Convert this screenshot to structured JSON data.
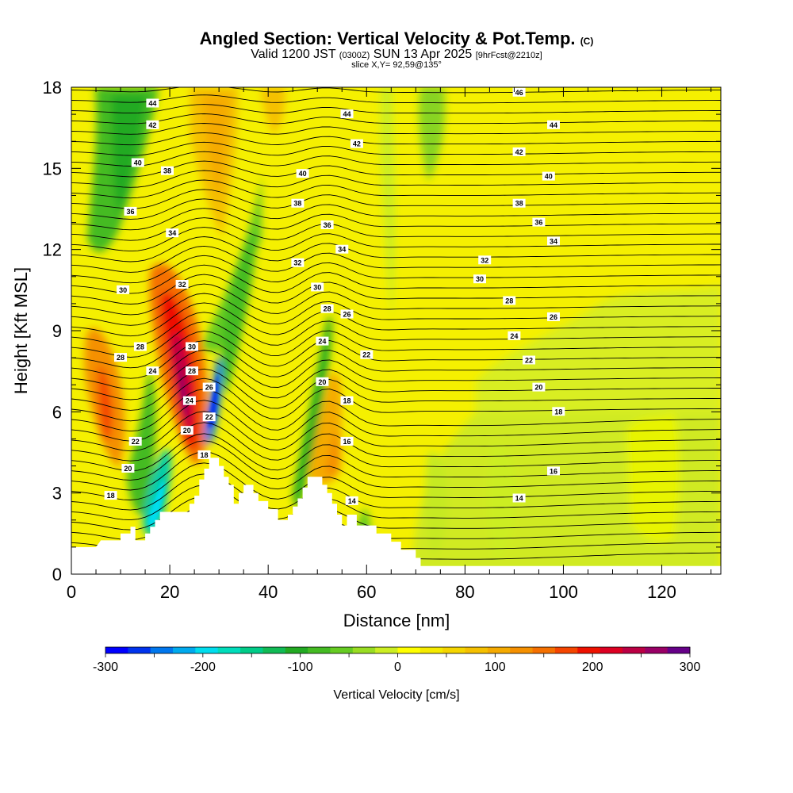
{
  "title": {
    "main": "Angled Section: Vertical Velocity & Pot.Temp.",
    "copyright": "(C)",
    "valid_prefix": "Valid 1200 JST",
    "valid_utc": "(0300Z)",
    "valid_date": "SUN 13 Apr 2025",
    "forecast": "[9hrFcst@2210z]",
    "slice": "slice X,Y= 92,59@135°"
  },
  "chart_data": {
    "type": "contour-section",
    "title": "Angled Section: Vertical Velocity & Pot.Temp.",
    "xlabel": "Distance [nm]",
    "ylabel": "Height [Kft MSL]",
    "xlim": [
      0,
      132
    ],
    "ylim": [
      0,
      18
    ],
    "x_ticks": [
      "0",
      "20",
      "40",
      "60",
      "80",
      "100",
      "120"
    ],
    "x_tick_values": [
      0,
      20,
      40,
      60,
      80,
      100,
      120
    ],
    "y_ticks": [
      "0",
      "3",
      "6",
      "9",
      "12",
      "15",
      "18"
    ],
    "y_tick_values": [
      0,
      3,
      6,
      9,
      12,
      15,
      18
    ],
    "terrain": [
      [
        0,
        1
      ],
      [
        5,
        1
      ],
      [
        5,
        1
      ],
      [
        6,
        1.25
      ],
      [
        10,
        1.25
      ],
      [
        10,
        1.5
      ],
      [
        12,
        1.5
      ],
      [
        12,
        1.75
      ],
      [
        13,
        1.75
      ],
      [
        13,
        1.25
      ],
      [
        15,
        1.25
      ],
      [
        15,
        1.5
      ],
      [
        16,
        1.5
      ],
      [
        16,
        1.75
      ],
      [
        17,
        1.75
      ],
      [
        17,
        2
      ],
      [
        18,
        2
      ],
      [
        18,
        2.3
      ],
      [
        24,
        2.3
      ],
      [
        24,
        2.6
      ],
      [
        25,
        2.6
      ],
      [
        25,
        2.9
      ],
      [
        26,
        2.9
      ],
      [
        26,
        3.5
      ],
      [
        27,
        3.5
      ],
      [
        27,
        3.9
      ],
      [
        28,
        3.9
      ],
      [
        28,
        4.3
      ],
      [
        30,
        4.3
      ],
      [
        30,
        4
      ],
      [
        31,
        4
      ],
      [
        31,
        3.6
      ],
      [
        32,
        3.6
      ],
      [
        32,
        3.3
      ],
      [
        33,
        3.3
      ],
      [
        33,
        2.6
      ],
      [
        34,
        2.6
      ],
      [
        34,
        3
      ],
      [
        35,
        3
      ],
      [
        35,
        3.3
      ],
      [
        37,
        3.3
      ],
      [
        37,
        3
      ],
      [
        38,
        3
      ],
      [
        38,
        2.7
      ],
      [
        40,
        2.7
      ],
      [
        40,
        2.4
      ],
      [
        42,
        2.4
      ],
      [
        42,
        2
      ],
      [
        44,
        2
      ],
      [
        44,
        2.2
      ],
      [
        45,
        2.2
      ],
      [
        45,
        2.5
      ],
      [
        46,
        2.5
      ],
      [
        46,
        2.8
      ],
      [
        47,
        2.8
      ],
      [
        47,
        3.2
      ],
      [
        48,
        3.2
      ],
      [
        48,
        3.6
      ],
      [
        51,
        3.6
      ],
      [
        51,
        3.3
      ],
      [
        52,
        3.3
      ],
      [
        52,
        3
      ],
      [
        53,
        3
      ],
      [
        53,
        2.6
      ],
      [
        54,
        2.6
      ],
      [
        54,
        2.2
      ],
      [
        55,
        2.2
      ],
      [
        55,
        1.8
      ],
      [
        56,
        1.8
      ],
      [
        56,
        2.2
      ],
      [
        58,
        2.2
      ],
      [
        58,
        1.8
      ],
      [
        62,
        1.8
      ],
      [
        62,
        1.5
      ],
      [
        65,
        1.5
      ],
      [
        65,
        1.2
      ],
      [
        67,
        1.2
      ],
      [
        67,
        0.9
      ],
      [
        70,
        0.9
      ],
      [
        70,
        0.6
      ],
      [
        71,
        0.6
      ],
      [
        71,
        0.3
      ],
      [
        132,
        0.3
      ],
      [
        132,
        0
      ]
    ],
    "colorbar": {
      "label": "Vertical Velocity [cm/s]",
      "min": -300,
      "max": 300,
      "step": 25,
      "tick_labels": [
        "-300",
        "-200",
        "-100",
        "0",
        "100",
        "200",
        "300"
      ],
      "tick_values": [
        -300,
        -200,
        -100,
        0,
        100,
        200,
        300
      ],
      "colors": [
        "#0000ff",
        "#0033ee",
        "#0077ee",
        "#00aaee",
        "#00ddee",
        "#00ddbb",
        "#00cc88",
        "#11bb55",
        "#22aa22",
        "#44bb22",
        "#66cc22",
        "#99dd22",
        "#ccee22",
        "#ffff00",
        "#f5ea00",
        "#f5d500",
        "#f5c000",
        "#f5aa00",
        "#f59000",
        "#f57000",
        "#f54500",
        "#ee1100",
        "#dd0022",
        "#bb0044",
        "#990066",
        "#660088"
      ]
    },
    "theta_isentropes_C": [
      "14",
      "16",
      "18",
      "20",
      "22",
      "24",
      "26",
      "28",
      "30",
      "32",
      "34",
      "36",
      "38",
      "40",
      "42",
      "44",
      "46"
    ],
    "contour_labels": [
      {
        "text": "46",
        "x": 91,
        "y": 17.8
      },
      {
        "text": "44",
        "x": 56,
        "y": 17.0
      },
      {
        "text": "44",
        "x": 98,
        "y": 16.6
      },
      {
        "text": "44",
        "x": 16.5,
        "y": 17.4
      },
      {
        "text": "42",
        "x": 16.5,
        "y": 16.6
      },
      {
        "text": "42",
        "x": 58,
        "y": 15.9
      },
      {
        "text": "42",
        "x": 91,
        "y": 15.6
      },
      {
        "text": "40",
        "x": 13.5,
        "y": 15.2
      },
      {
        "text": "38",
        "x": 19.5,
        "y": 14.9
      },
      {
        "text": "40",
        "x": 47,
        "y": 14.8
      },
      {
        "text": "40",
        "x": 97,
        "y": 14.7
      },
      {
        "text": "38",
        "x": 46,
        "y": 13.7
      },
      {
        "text": "38",
        "x": 91,
        "y": 13.7
      },
      {
        "text": "36",
        "x": 12,
        "y": 13.4
      },
      {
        "text": "36",
        "x": 95,
        "y": 13.0
      },
      {
        "text": "36",
        "x": 52,
        "y": 12.9
      },
      {
        "text": "34",
        "x": 20.5,
        "y": 12.6
      },
      {
        "text": "34",
        "x": 98,
        "y": 12.3
      },
      {
        "text": "34",
        "x": 55,
        "y": 12.0
      },
      {
        "text": "32",
        "x": 84,
        "y": 11.6
      },
      {
        "text": "32",
        "x": 46,
        "y": 11.5
      },
      {
        "text": "32",
        "x": 22.5,
        "y": 10.7
      },
      {
        "text": "30",
        "x": 83,
        "y": 10.9
      },
      {
        "text": "30",
        "x": 50,
        "y": 10.6
      },
      {
        "text": "30",
        "x": 10.5,
        "y": 10.5
      },
      {
        "text": "28",
        "x": 89,
        "y": 10.1
      },
      {
        "text": "28",
        "x": 52,
        "y": 9.8
      },
      {
        "text": "26",
        "x": 56,
        "y": 9.6
      },
      {
        "text": "26",
        "x": 98,
        "y": 9.5
      },
      {
        "text": "24",
        "x": 90,
        "y": 8.8
      },
      {
        "text": "24",
        "x": 51,
        "y": 8.6
      },
      {
        "text": "22",
        "x": 60,
        "y": 8.1
      },
      {
        "text": "22",
        "x": 93,
        "y": 7.9
      },
      {
        "text": "30",
        "x": 24.5,
        "y": 8.4
      },
      {
        "text": "28",
        "x": 14,
        "y": 8.4
      },
      {
        "text": "28",
        "x": 10,
        "y": 8.0
      },
      {
        "text": "28",
        "x": 24.5,
        "y": 7.5
      },
      {
        "text": "24",
        "x": 16.5,
        "y": 7.5
      },
      {
        "text": "20",
        "x": 51,
        "y": 7.1
      },
      {
        "text": "20",
        "x": 95,
        "y": 6.9
      },
      {
        "text": "26",
        "x": 28,
        "y": 6.9
      },
      {
        "text": "24",
        "x": 24,
        "y": 6.4
      },
      {
        "text": "18",
        "x": 56,
        "y": 6.4
      },
      {
        "text": "18",
        "x": 99,
        "y": 6.0
      },
      {
        "text": "22",
        "x": 28,
        "y": 5.8
      },
      {
        "text": "20",
        "x": 23.5,
        "y": 5.3
      },
      {
        "text": "22",
        "x": 13,
        "y": 4.9
      },
      {
        "text": "16",
        "x": 56,
        "y": 4.9
      },
      {
        "text": "18",
        "x": 27,
        "y": 4.4
      },
      {
        "text": "20",
        "x": 11.5,
        "y": 3.9
      },
      {
        "text": "16",
        "x": 98,
        "y": 3.8
      },
      {
        "text": "18",
        "x": 8,
        "y": 2.9
      },
      {
        "text": "14",
        "x": 57,
        "y": 2.7
      },
      {
        "text": "14",
        "x": 91,
        "y": 2.8
      }
    ]
  }
}
